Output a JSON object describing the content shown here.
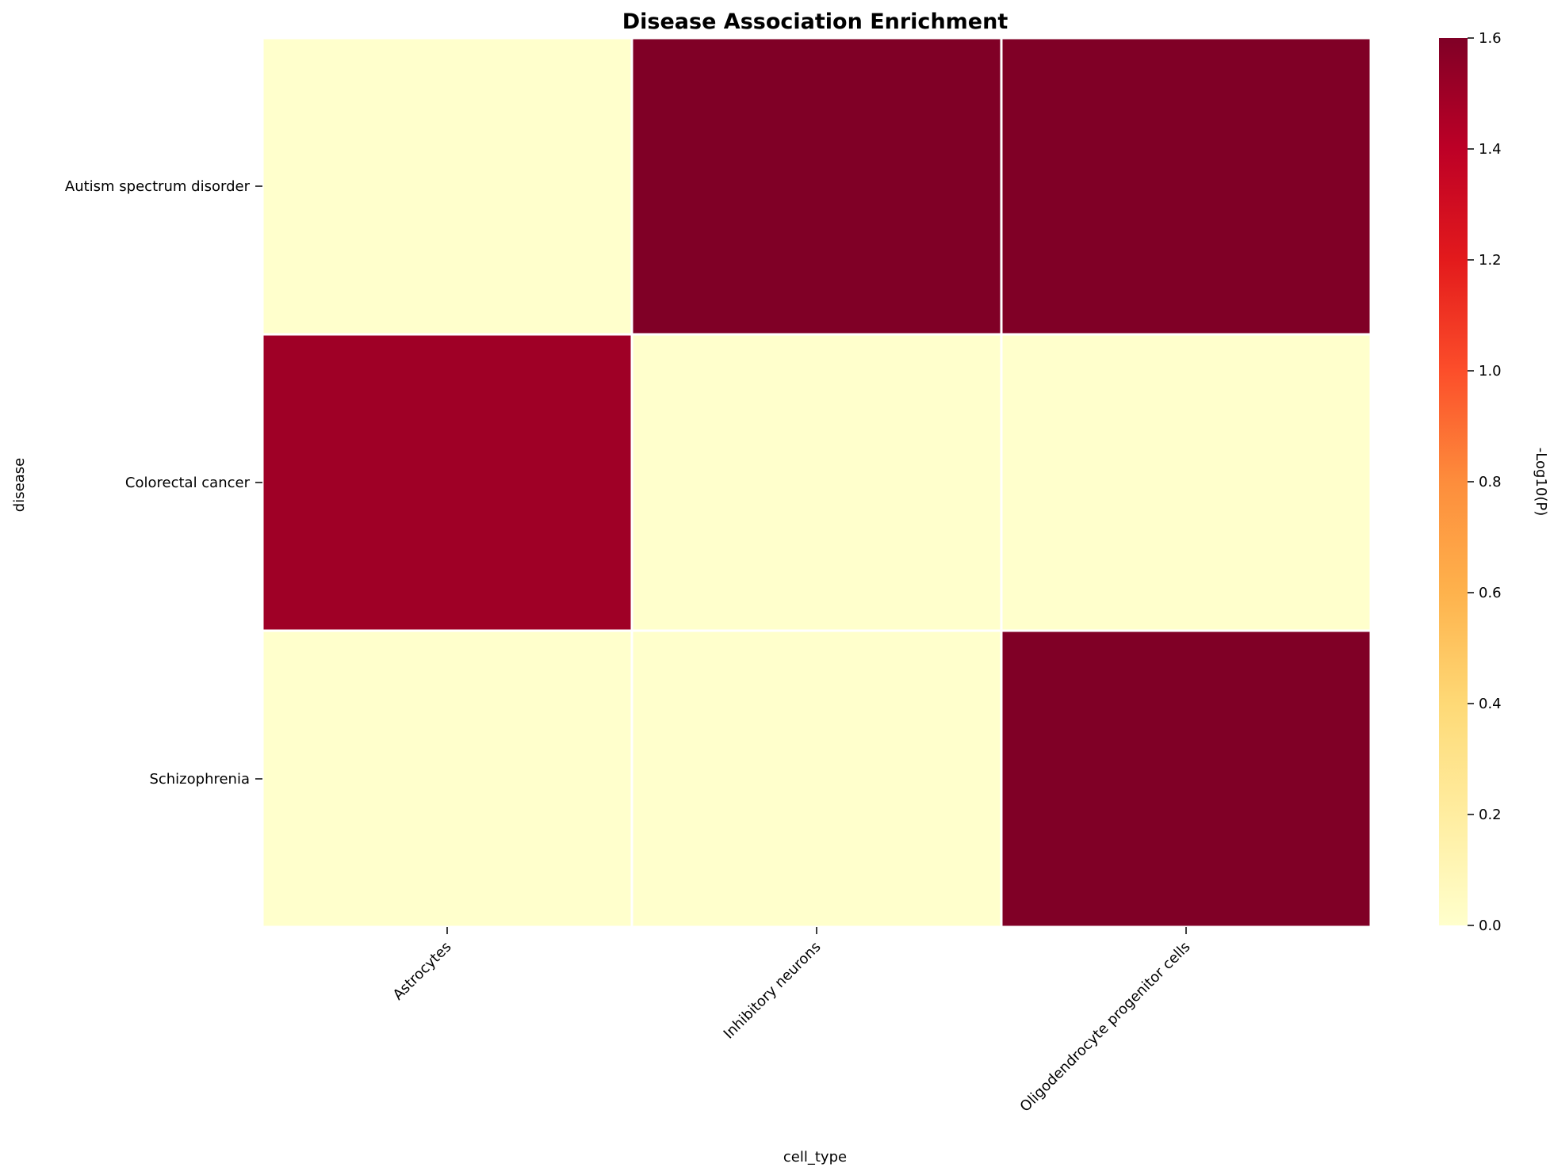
{
  "chart_data": {
    "type": "heatmap",
    "title": "Disease Association Enrichment",
    "xlabel": "cell_type",
    "ylabel": "disease",
    "x_categories": [
      "Astrocytes",
      "Inhibitory neurons",
      "Oligodendrocyte progenitor cells"
    ],
    "y_categories": [
      "Autism spectrum disorder",
      "Colorectal cancer",
      "Schizophrenia"
    ],
    "values": [
      [
        0.0,
        1.6,
        1.6
      ],
      [
        1.5,
        0.0,
        0.0
      ],
      [
        0.0,
        0.0,
        1.6
      ]
    ],
    "colorbar": {
      "label": "-Log10(P)",
      "range": [
        0.0,
        1.6
      ],
      "ticks": [
        0.0,
        0.2,
        0.4,
        0.6,
        0.8,
        1.0,
        1.2,
        1.4,
        1.6
      ],
      "tick_labels": [
        "0.0",
        "0.2",
        "0.4",
        "0.6",
        "0.8",
        "1.0",
        "1.2",
        "1.4",
        "1.6"
      ],
      "colormap": "YlOrRd",
      "colormap_stops": [
        "#ffffcc",
        "#ffeda0",
        "#fed976",
        "#feb24c",
        "#fd8d3c",
        "#fc4e2a",
        "#e31a1c",
        "#bd0026",
        "#800026"
      ]
    },
    "cell_border_color": "#ffffff"
  }
}
